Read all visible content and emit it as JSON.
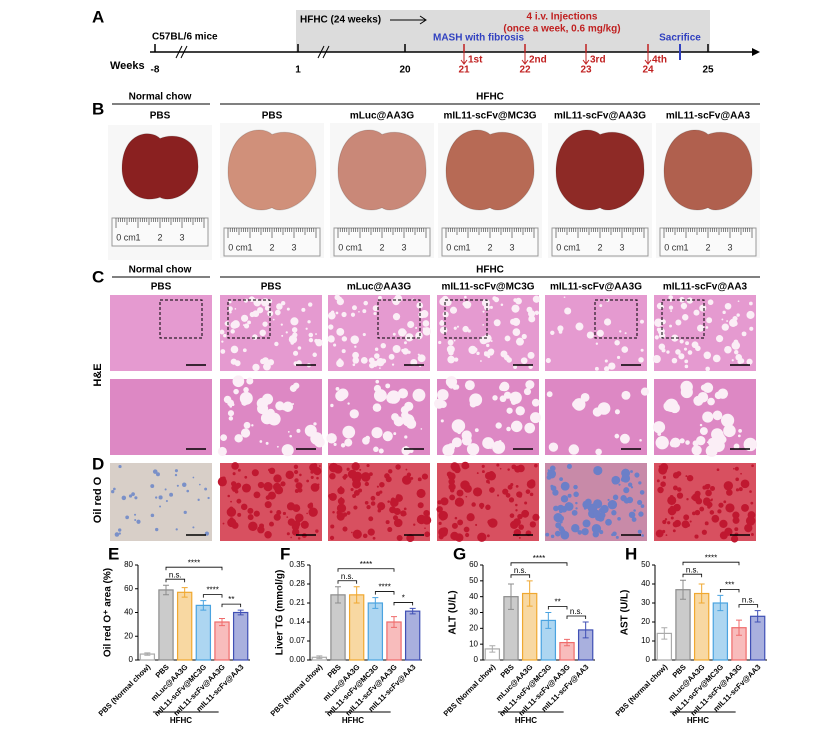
{
  "panels": [
    "A",
    "B",
    "C",
    "D",
    "E",
    "F",
    "G",
    "H"
  ],
  "timeline": {
    "weeks_label": "Weeks",
    "start_label": "C57BL/6 mice",
    "diet_label": "HFHC (24 weeks)",
    "disease_label": "MASH with fibrosis",
    "injection_title": "4 i.v. Injections",
    "injection_detail": "(once a week, 0.6 mg/kg)",
    "sacrifice_label": "Sacrifice",
    "weeks": [
      "-8",
      "1",
      "20",
      "21",
      "22",
      "23",
      "24",
      "25"
    ],
    "injections": [
      "1st",
      "2nd",
      "3rd",
      "4th"
    ]
  },
  "panel_b": {
    "group_left": "Normal chow",
    "group_right": "HFHC",
    "columns": [
      "PBS",
      "PBS",
      "mLuc@AA3G",
      "mIL11-scFv@MC3G",
      "mIL11-scFv@AA3G",
      "mIL11-scFv@AA3"
    ],
    "ruler": [
      "0 cm",
      "1",
      "2",
      "3"
    ]
  },
  "panel_c": {
    "group_left": "Normal chow",
    "group_right": "HFHC",
    "columns": [
      "PBS",
      "PBS",
      "mLuc@AA3G",
      "mIL11-scFv@MC3G",
      "mIL11-scFv@AA3G",
      "mIL11-scFv@AA3"
    ],
    "row_label": "H&E"
  },
  "panel_d": {
    "row_label": "Oil red O"
  },
  "chart_data": [
    {
      "type": "bar",
      "y_label": "Oil red O⁺ area (%)",
      "categories": [
        "PBS (Normal chow)",
        "PBS",
        "mLuc@AA3G",
        "mIL11-scFv@MC3G",
        "mIL11-scFv@AA3G",
        "mIL11-scFv@AA3"
      ],
      "values": [
        5,
        59,
        57,
        46,
        32,
        40
      ],
      "errors": [
        1,
        4,
        4,
        4,
        3,
        2
      ],
      "colors": [
        "#aaaaaa",
        "#8c8c8c",
        "#f0a830",
        "#4aa3e0",
        "#ef6b6b",
        "#4050b5"
      ],
      "ylim": [
        0,
        80
      ],
      "yticks": [
        0,
        20,
        40,
        60,
        80
      ],
      "annotations": [
        "n.s.",
        "****",
        "****",
        "**"
      ],
      "group_label": "HFHC"
    },
    {
      "type": "bar",
      "y_label": "Liver TG (mmol/g)",
      "categories": [
        "PBS (Normal chow)",
        "PBS",
        "mLuc@AA3G",
        "mIL11-scFv@MC3G",
        "mIL11-scFv@AA3G",
        "mIL11-scFv@AA3"
      ],
      "values": [
        0.01,
        0.24,
        0.24,
        0.21,
        0.14,
        0.18
      ],
      "errors": [
        0.005,
        0.03,
        0.03,
        0.02,
        0.02,
        0.01
      ],
      "colors": [
        "#aaaaaa",
        "#8c8c8c",
        "#f0a830",
        "#4aa3e0",
        "#ef6b6b",
        "#4050b5"
      ],
      "ylim": [
        0,
        0.35
      ],
      "yticks": [
        {
          "value": 0,
          "label": "0.00"
        },
        0.07,
        0.14,
        0.21,
        0.28,
        0.35
      ],
      "annotations": [
        "n.s.",
        "****",
        "****",
        "*"
      ],
      "group_label": "HFHC"
    },
    {
      "type": "bar",
      "y_label": "ALT (U/L)",
      "categories": [
        "PBS (Normal chow)",
        "PBS",
        "mLuc@AA3G",
        "mIL11-scFv@MC3G",
        "mIL11-scFv@AA3G",
        "mIL11-scFv@AA3"
      ],
      "values": [
        7,
        40,
        42,
        25,
        11,
        19
      ],
      "errors": [
        2,
        8,
        8,
        5,
        2,
        5
      ],
      "colors": [
        "#aaaaaa",
        "#8c8c8c",
        "#f0a830",
        "#4aa3e0",
        "#ef6b6b",
        "#4050b5"
      ],
      "ylim": [
        0,
        60
      ],
      "yticks": [
        0,
        10,
        20,
        30,
        40,
        50,
        60
      ],
      "annotations": [
        "n.s.",
        "****",
        "**",
        "n.s."
      ],
      "group_label": "HFHC"
    },
    {
      "type": "bar",
      "y_label": "AST (U/L)",
      "categories": [
        "PBS (Normal chow)",
        "PBS",
        "mLuc@AA3G",
        "mIL11-scFv@MC3G",
        "mIL11-scFv@AA3G",
        "mIL11-scFv@AA3"
      ],
      "values": [
        14,
        37,
        35,
        30,
        17,
        23
      ],
      "errors": [
        3,
        5,
        5,
        4,
        4,
        3
      ],
      "colors": [
        "#aaaaaa",
        "#8c8c8c",
        "#f0a830",
        "#4aa3e0",
        "#ef6b6b",
        "#4050b5"
      ],
      "ylim": [
        0,
        50
      ],
      "yticks": [
        0,
        10,
        20,
        30,
        40,
        50
      ],
      "annotations": [
        "n.s.",
        "****",
        "***",
        "n.s."
      ],
      "group_label": "HFHC"
    }
  ]
}
